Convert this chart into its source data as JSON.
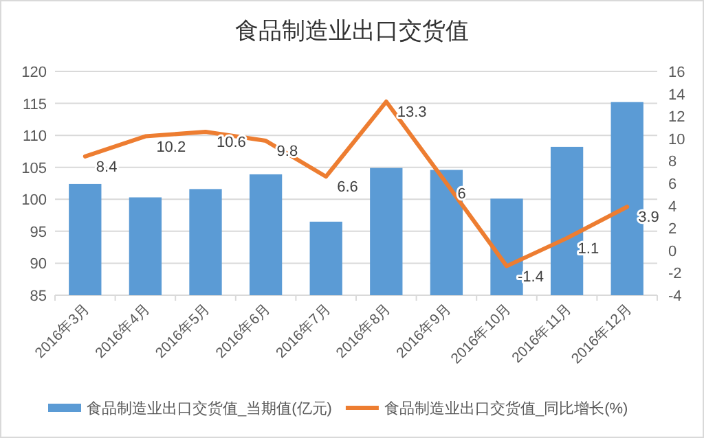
{
  "chart_data": {
    "type": "bar",
    "title": "食品制造业出口交货值",
    "categories": [
      "2016年3月",
      "2016年4月",
      "2016年5月",
      "2016年6月",
      "2016年7月",
      "2016年8月",
      "2016年9月",
      "2016年10月",
      "2016年11月",
      "2016年12月"
    ],
    "series": [
      {
        "name": "食品制造业出口交货值_当期值(亿元)",
        "color": "#5b9bd5",
        "values": [
          102.4,
          100.3,
          101.6,
          103.9,
          96.5,
          104.9,
          104.6,
          100.1,
          108.2,
          115.2
        ]
      },
      {
        "name": "食品制造业出口交货值_同比增长(%)",
        "type": "line",
        "axis": "y2",
        "color": "#ed7d31",
        "values": [
          8.4,
          10.2,
          10.6,
          9.8,
          6.6,
          13.3,
          6,
          -1.4,
          1.1,
          3.9
        ],
        "value_labels": [
          "8.4",
          "10.2",
          "10.6",
          "9.8",
          "6.6",
          "13.3",
          "6",
          "-1.4",
          "1.1",
          "3.9"
        ]
      }
    ],
    "ylim": [
      85,
      120
    ],
    "yticks": [
      85,
      90,
      95,
      100,
      105,
      110,
      115,
      120
    ],
    "y2lim": [
      -4,
      16
    ],
    "y2ticks": [
      -4,
      -2,
      0,
      2,
      4,
      6,
      8,
      10,
      12,
      14,
      16
    ],
    "grid": "y",
    "legend": "bottom"
  }
}
